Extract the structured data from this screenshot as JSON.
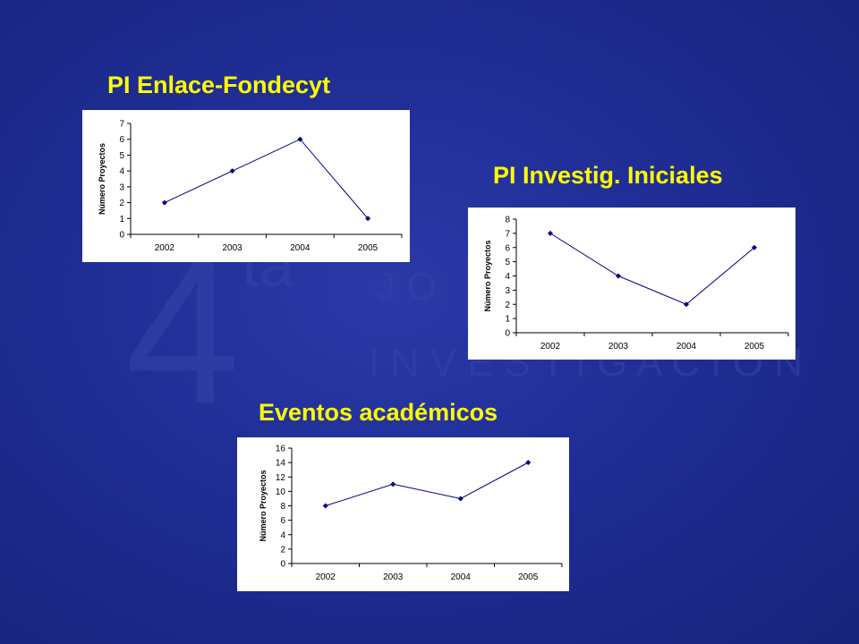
{
  "watermark": {
    "numeral": "4",
    "superscript": "ta",
    "line1": "J O",
    "line2": "I N V E S T I G A C I Ó N"
  },
  "chart_data": [
    {
      "type": "line",
      "title": "PI  Enlace-Fondecyt",
      "categories": [
        "2002",
        "2003",
        "2004",
        "2005"
      ],
      "series": [
        {
          "values": [
            2,
            4,
            6,
            1
          ]
        }
      ],
      "ylabel": "Número Proyectos",
      "xlabel": "",
      "ylim": [
        0,
        7
      ],
      "ytick_step": 1,
      "yticks": [
        "0",
        "1",
        "2",
        "3",
        "4",
        "5",
        "6",
        "7"
      ],
      "grid": false,
      "line_color": "#000080"
    },
    {
      "type": "line",
      "title": "PI  Investig. Iniciales",
      "categories": [
        "2002",
        "2003",
        "2004",
        "2005"
      ],
      "series": [
        {
          "values": [
            7,
            4,
            2,
            6
          ]
        }
      ],
      "ylabel": "Número Proyectos",
      "xlabel": "",
      "ylim": [
        0,
        8
      ],
      "ytick_step": 1,
      "yticks": [
        "0",
        "1",
        "2",
        "3",
        "4",
        "5",
        "6",
        "7",
        "8"
      ],
      "grid": false,
      "line_color": "#000080"
    },
    {
      "type": "line",
      "title": "Eventos académicos",
      "categories": [
        "2002",
        "2003",
        "2004",
        "2005"
      ],
      "series": [
        {
          "values": [
            8,
            11,
            9,
            14
          ]
        }
      ],
      "ylabel": "Número Proyectos",
      "xlabel": "",
      "ylim": [
        0,
        16
      ],
      "ytick_step": 2,
      "yticks": [
        "0",
        "2",
        "4",
        "6",
        "8",
        "10",
        "12",
        "14",
        "16"
      ],
      "grid": false,
      "line_color": "#000080"
    }
  ]
}
